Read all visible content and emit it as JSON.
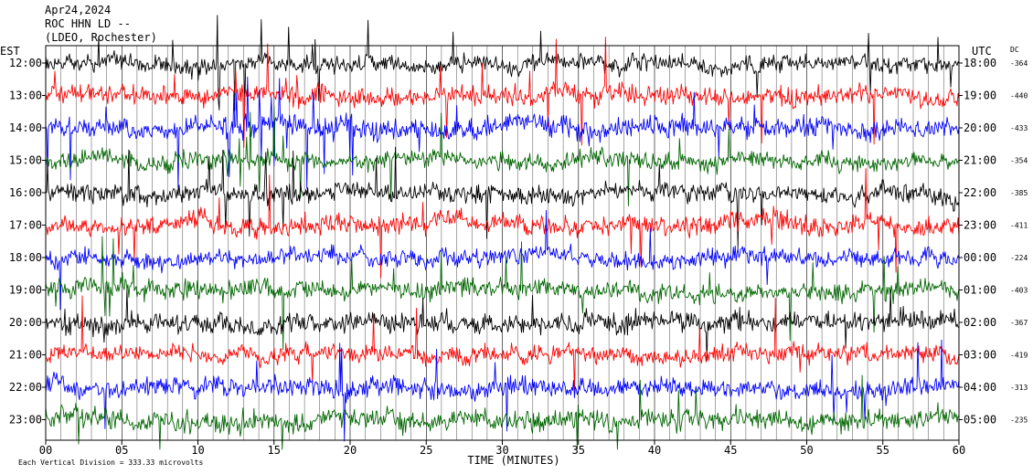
{
  "header": {
    "date": "Apr24,2024",
    "station": "ROC HHN LD --",
    "location": "(LDEO, Rochester)"
  },
  "labels": {
    "left_timezone": "EST",
    "right_timezone": "UTC",
    "dc_header": "DC",
    "x_axis_title": "TIME (MINUTES)",
    "scale_note": "Each Vertical Division =  333.33 microvolts"
  },
  "colors": {
    "trace_cycle": [
      "#000000",
      "#ff0000",
      "#0000ff",
      "#006600"
    ]
  },
  "chart_data": {
    "type": "line",
    "title": "",
    "xlabel": "TIME (MINUTES)",
    "ylabel": "",
    "xlim": [
      0,
      60
    ],
    "x_ticks": [
      "00",
      "05",
      "10",
      "15",
      "20",
      "25",
      "30",
      "35",
      "40",
      "45",
      "50",
      "55",
      "60"
    ],
    "x_tick_values": [
      0,
      5,
      10,
      15,
      20,
      25,
      30,
      35,
      40,
      45,
      50,
      55,
      60
    ],
    "grid": "vertical-lines-each-minute",
    "rows": [
      {
        "est": "12:00",
        "utc": "18:00",
        "dc": "-364"
      },
      {
        "est": "13:00",
        "utc": "19:00",
        "dc": "-440"
      },
      {
        "est": "14:00",
        "utc": "20:00",
        "dc": "-433"
      },
      {
        "est": "15:00",
        "utc": "21:00",
        "dc": "-354"
      },
      {
        "est": "16:00",
        "utc": "22:00",
        "dc": "-385"
      },
      {
        "est": "17:00",
        "utc": "23:00",
        "dc": "-411"
      },
      {
        "est": "18:00",
        "utc": "00:00",
        "dc": "-224"
      },
      {
        "est": "19:00",
        "utc": "01:00",
        "dc": "-403"
      },
      {
        "est": "20:00",
        "utc": "02:00",
        "dc": "-367"
      },
      {
        "est": "21:00",
        "utc": "03:00",
        "dc": "-419"
      },
      {
        "est": "22:00",
        "utc": "04:00",
        "dc": "-313"
      },
      {
        "est": "23:00",
        "utc": "05:00",
        "dc": "-235"
      }
    ]
  }
}
